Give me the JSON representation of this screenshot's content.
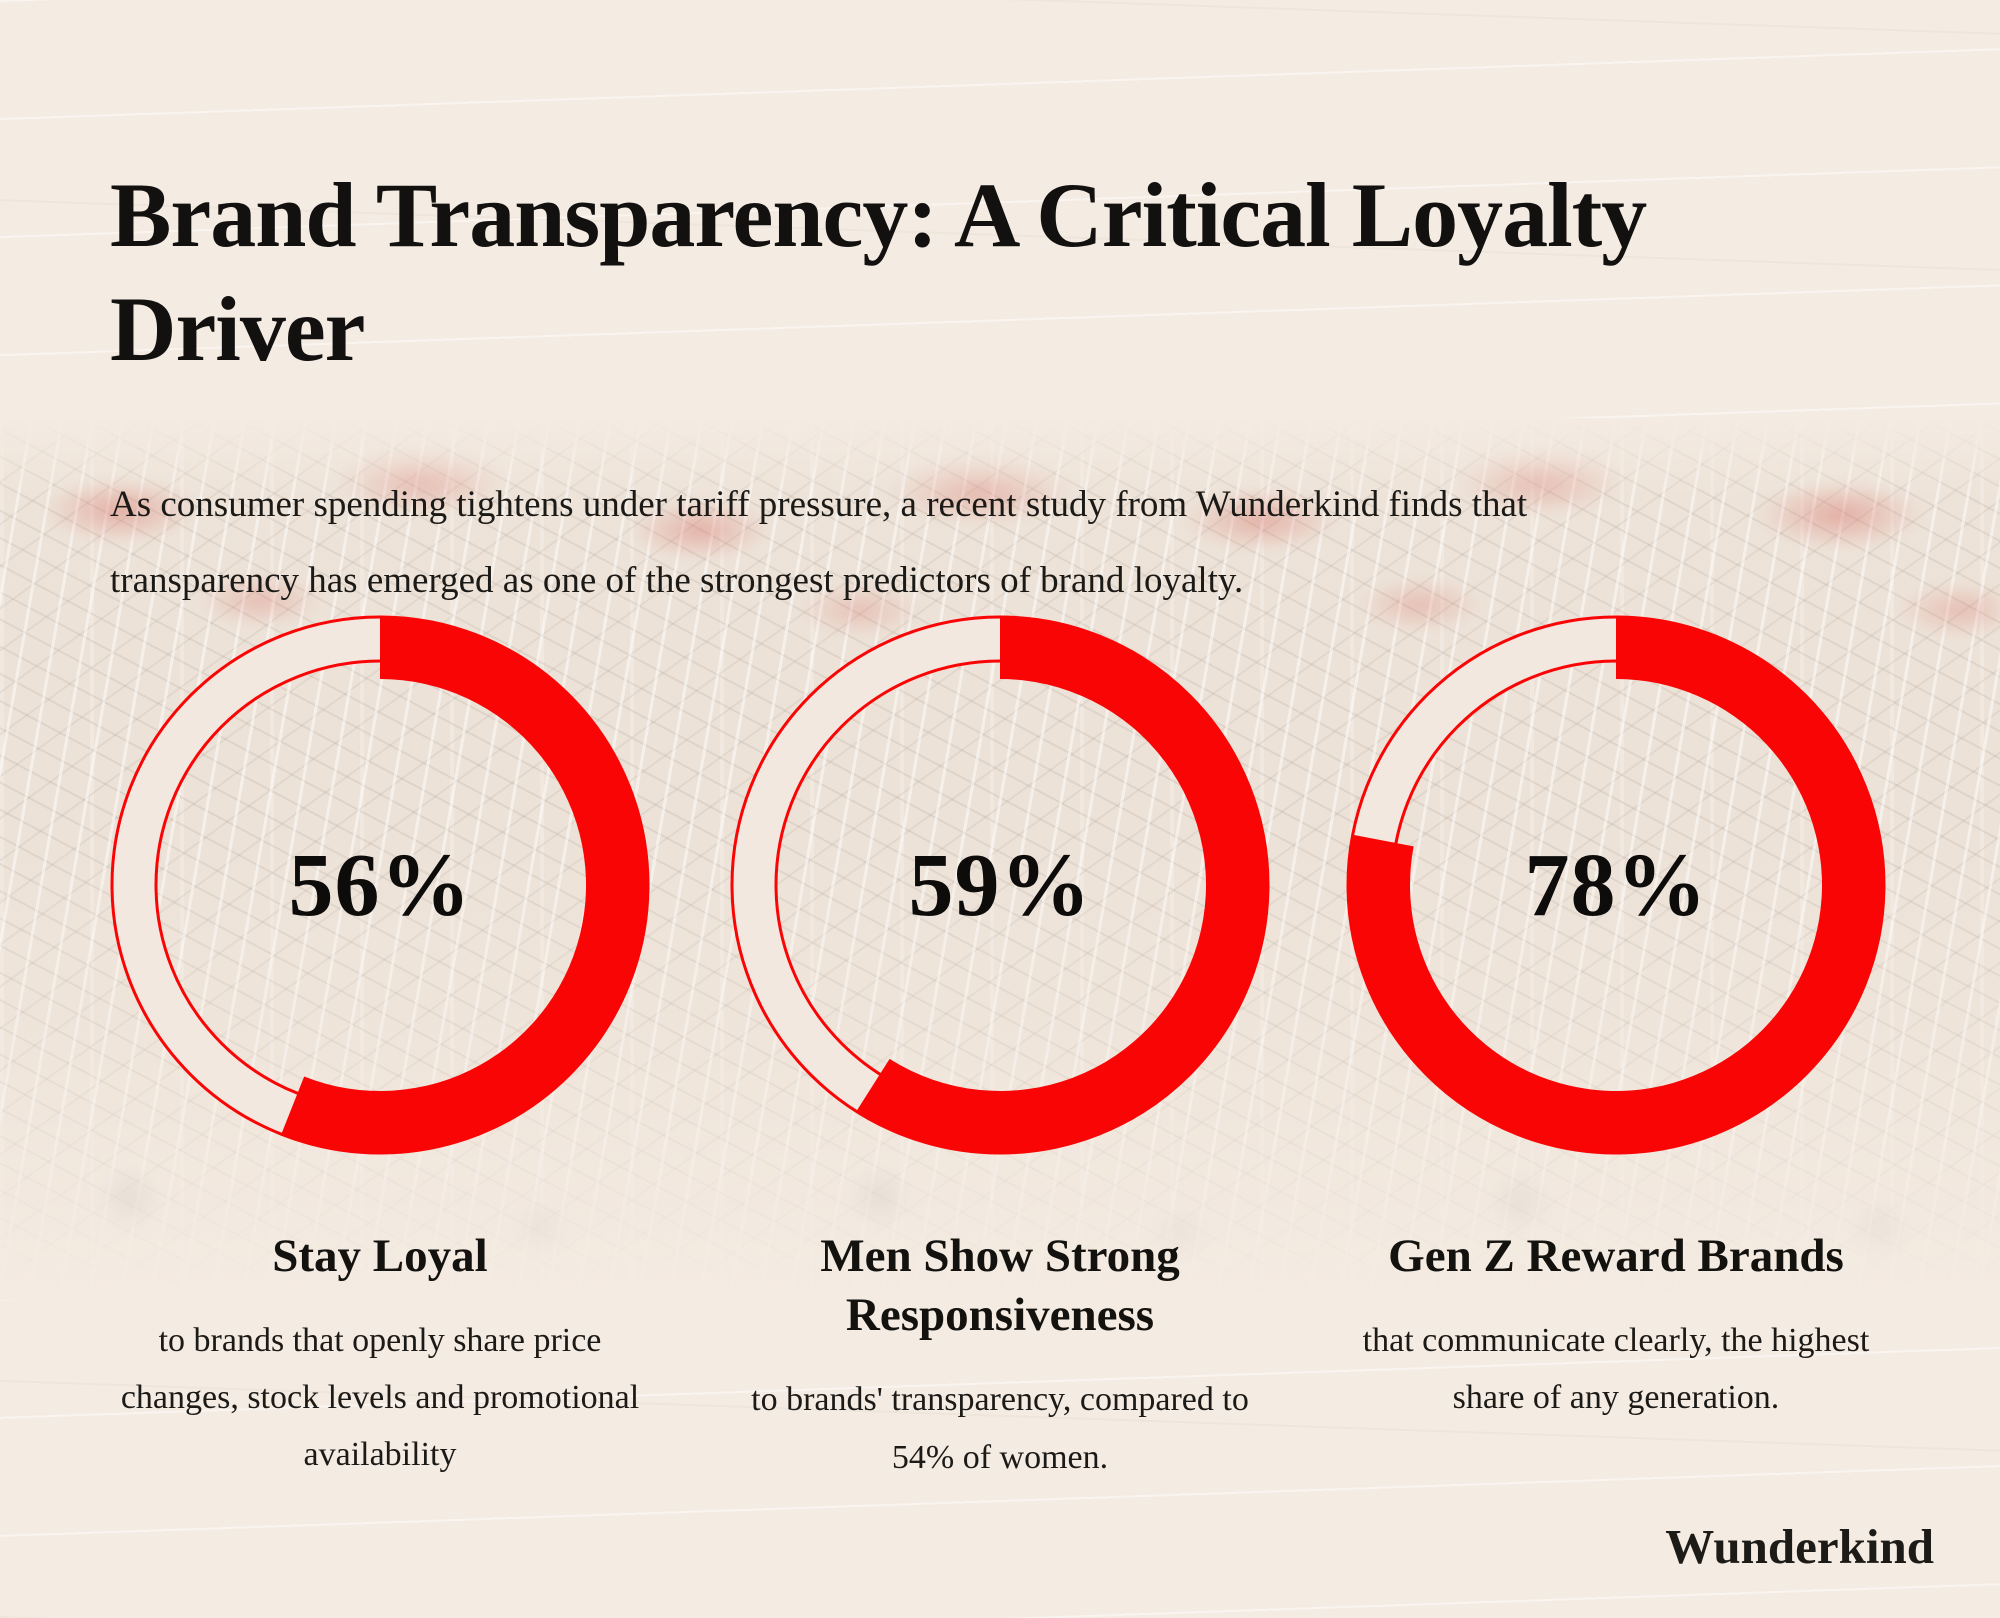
{
  "page": {
    "title_lines": [
      "Brand Transparency: A Critical Loyalty",
      "Driver"
    ],
    "subtitle_lines": [
      "As consumer spending tightens under tariff pressure, a recent study from Wunderkind finds that",
      "transparency has emerged as one of the strongest predictors of brand loyalty."
    ],
    "brand_logo": "Wunderkind"
  },
  "colors": {
    "accent_red": "#fa0505",
    "track_cream": "#f3e8df",
    "background_beige": "#f4ebe2",
    "text_black": "#14120f"
  },
  "chart_data": [
    {
      "type": "donut",
      "value": 56,
      "value_label": "56%",
      "heading_lines": [
        "Stay Loyal"
      ],
      "description_lines": [
        "to brands that openly share price",
        "changes, stock levels and promotional",
        "availability"
      ]
    },
    {
      "type": "donut",
      "value": 59,
      "value_label": "59%",
      "heading_lines": [
        "Men Show Strong",
        "Responsiveness"
      ],
      "description_lines": [
        "to brands' transparency, compared to",
        "54% of women."
      ]
    },
    {
      "type": "donut",
      "value": 78,
      "value_label": "78%",
      "heading_lines": [
        "Gen Z Reward Brands"
      ],
      "description_lines": [
        "that communicate clearly, the highest",
        "share of any generation."
      ]
    }
  ]
}
